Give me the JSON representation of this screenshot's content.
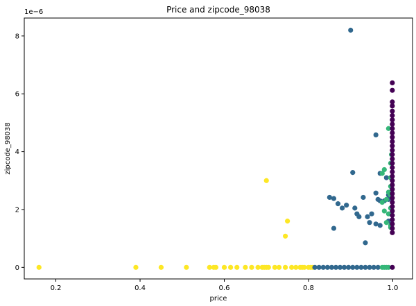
{
  "chart_data": {
    "type": "scatter",
    "title": "Price and zipcode_98038",
    "xlabel": "price",
    "ylabel": "zipcode_98038",
    "y_offset_label": "1e−6",
    "xlim": [
      0.125,
      1.047
    ],
    "ylim": [
      -4e-07,
      8.62e-06
    ],
    "xticks": [
      0.2,
      0.4,
      0.6,
      0.8,
      1.0
    ],
    "xtick_labels": [
      "0.2",
      "0.4",
      "0.6",
      "0.8",
      "1.0"
    ],
    "yticks": [
      0,
      2e-06,
      4e-06,
      6e-06,
      8e-06
    ],
    "ytick_labels": [
      "0",
      "2",
      "4",
      "6",
      "8"
    ],
    "grid": false,
    "series": [
      {
        "color": "#fde725",
        "points": [
          [
            0.16,
            0
          ],
          [
            0.39,
            0
          ],
          [
            0.45,
            0
          ],
          [
            0.51,
            0
          ],
          [
            0.565,
            0
          ],
          [
            0.575,
            0
          ],
          [
            0.58,
            0
          ],
          [
            0.6,
            0
          ],
          [
            0.615,
            0
          ],
          [
            0.63,
            0
          ],
          [
            0.65,
            0
          ],
          [
            0.665,
            0
          ],
          [
            0.68,
            0
          ],
          [
            0.69,
            0
          ],
          [
            0.695,
            0
          ],
          [
            0.7,
            0
          ],
          [
            0.705,
            0
          ],
          [
            0.72,
            0
          ],
          [
            0.73,
            0
          ],
          [
            0.745,
            0
          ],
          [
            0.76,
            0
          ],
          [
            0.77,
            0
          ],
          [
            0.78,
            0
          ],
          [
            0.785,
            0
          ],
          [
            0.79,
            0
          ],
          [
            0.8,
            0
          ],
          [
            0.805,
            0
          ],
          [
            0.81,
            0
          ],
          [
            0.7,
            3e-06
          ],
          [
            0.75,
            1.6e-06
          ],
          [
            0.745,
            1.08e-06
          ]
        ]
      },
      {
        "color": "#31688e",
        "points": [
          [
            0.815,
            0
          ],
          [
            0.825,
            0
          ],
          [
            0.835,
            0
          ],
          [
            0.845,
            0
          ],
          [
            0.855,
            0
          ],
          [
            0.865,
            0
          ],
          [
            0.875,
            0
          ],
          [
            0.885,
            0
          ],
          [
            0.895,
            0
          ],
          [
            0.905,
            0
          ],
          [
            0.915,
            0
          ],
          [
            0.925,
            0
          ],
          [
            0.935,
            0
          ],
          [
            0.945,
            0
          ],
          [
            0.955,
            0
          ],
          [
            0.965,
            0
          ],
          [
            0.9,
            8.2e-06
          ],
          [
            0.96,
            4.58e-06
          ],
          [
            0.905,
            3.28e-06
          ],
          [
            0.97,
            3.25e-06
          ],
          [
            0.96,
            2.57e-06
          ],
          [
            0.93,
            2.42e-06
          ],
          [
            0.85,
            2.42e-06
          ],
          [
            0.86,
            2.38e-06
          ],
          [
            0.87,
            2.2e-06
          ],
          [
            0.89,
            2.15e-06
          ],
          [
            0.88,
            2.05e-06
          ],
          [
            0.91,
            2.05e-06
          ],
          [
            0.915,
            1.85e-06
          ],
          [
            0.92,
            1.75e-06
          ],
          [
            0.95,
            1.85e-06
          ],
          [
            0.94,
            1.75e-06
          ],
          [
            0.97,
            2.3e-06
          ],
          [
            0.98,
            2.3e-06
          ],
          [
            0.99,
            2.35e-06
          ],
          [
            0.965,
            2.35e-06
          ],
          [
            0.945,
            1.55e-06
          ],
          [
            0.96,
            1.5e-06
          ],
          [
            0.99,
            1.6e-06
          ],
          [
            0.97,
            1.45e-06
          ],
          [
            0.86,
            1.35e-06
          ],
          [
            0.935,
            8.5e-07
          ],
          [
            0.99,
            2.5e-06
          ],
          [
            0.985,
            3.1e-06
          ]
        ]
      },
      {
        "color": "#35b779",
        "points": [
          [
            0.975,
            0
          ],
          [
            0.98,
            0
          ],
          [
            0.985,
            0
          ],
          [
            0.99,
            0
          ],
          [
            0.98,
            3.38e-06
          ],
          [
            0.99,
            4.8e-06
          ],
          [
            0.975,
            3.25e-06
          ],
          [
            0.995,
            3.6e-06
          ],
          [
            0.995,
            3.1e-06
          ],
          [
            0.99,
            2.6e-06
          ],
          [
            0.995,
            2.5e-06
          ],
          [
            0.985,
            2.35e-06
          ],
          [
            0.98,
            1.95e-06
          ],
          [
            0.995,
            2.05e-06
          ],
          [
            0.99,
            1.85e-06
          ],
          [
            0.985,
            1.55e-06
          ],
          [
            0.995,
            1.45e-06
          ],
          [
            0.995,
            1.38e-06
          ],
          [
            0.975,
            2.25e-06
          ],
          [
            0.995,
            2.8e-06
          ],
          [
            0.997,
            3.9e-06
          ]
        ]
      },
      {
        "color": "#440154",
        "points": [
          [
            0.999,
            6.38e-06
          ],
          [
            0.999,
            6.12e-06
          ],
          [
            0.999,
            5.72e-06
          ],
          [
            0.999,
            5.58e-06
          ],
          [
            0.999,
            5.4e-06
          ],
          [
            0.999,
            5.25e-06
          ],
          [
            0.999,
            5.1e-06
          ],
          [
            0.999,
            4.95e-06
          ],
          [
            0.999,
            4.8e-06
          ],
          [
            0.999,
            4.65e-06
          ],
          [
            0.999,
            4.5e-06
          ],
          [
            0.999,
            4.35e-06
          ],
          [
            0.999,
            4.2e-06
          ],
          [
            0.999,
            4.05e-06
          ],
          [
            0.999,
            3.9e-06
          ],
          [
            0.999,
            3.75e-06
          ],
          [
            0.999,
            3.6e-06
          ],
          [
            0.999,
            3.45e-06
          ],
          [
            0.999,
            3.3e-06
          ],
          [
            0.999,
            3.15e-06
          ],
          [
            0.999,
            3e-06
          ],
          [
            0.999,
            2.85e-06
          ],
          [
            0.999,
            2.7e-06
          ],
          [
            0.999,
            2.55e-06
          ],
          [
            0.999,
            2.4e-06
          ],
          [
            0.999,
            2.25e-06
          ],
          [
            0.999,
            2.1e-06
          ],
          [
            0.999,
            1.95e-06
          ],
          [
            0.999,
            1.8e-06
          ],
          [
            0.999,
            1.65e-06
          ],
          [
            0.999,
            1.5e-06
          ],
          [
            0.999,
            1.35e-06
          ],
          [
            0.999,
            1.2e-06
          ],
          [
            0.999,
            0
          ]
        ]
      }
    ]
  }
}
